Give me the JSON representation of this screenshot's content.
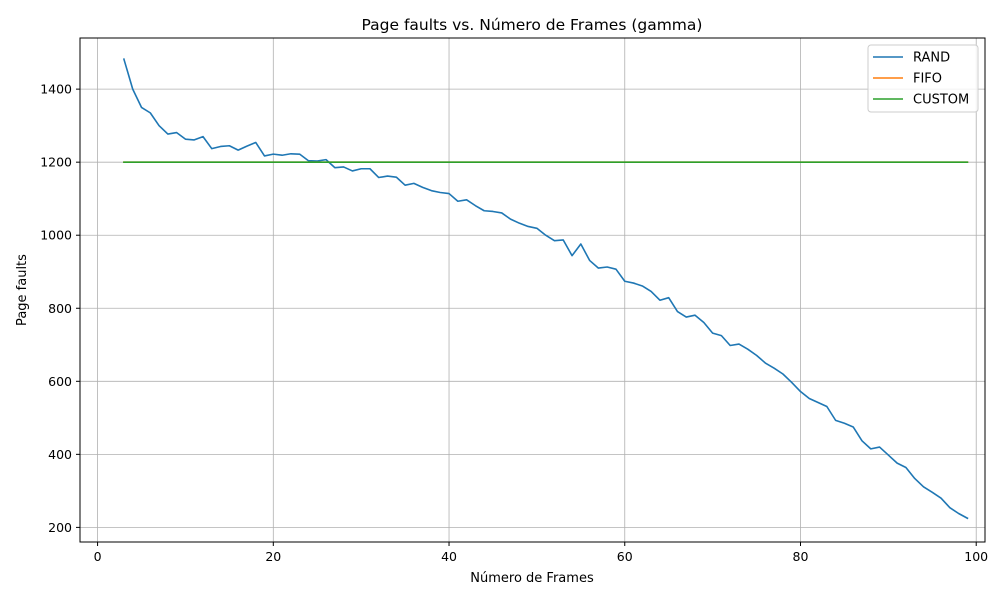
{
  "chart_data": {
    "type": "line",
    "title": "Page faults vs. Número de Frames (gamma)",
    "xlabel": "Número de Frames",
    "ylabel": "Page faults",
    "xlim": [
      -2,
      101
    ],
    "ylim": [
      160,
      1540
    ],
    "xticks": [
      "0",
      "20",
      "40",
      "60",
      "80",
      "100"
    ],
    "yticks": [
      "200",
      "400",
      "600",
      "800",
      "1000",
      "1200",
      "1400"
    ],
    "grid": true,
    "legend_position": "top-right",
    "x": [
      3,
      4,
      5,
      6,
      7,
      8,
      9,
      10,
      11,
      12,
      13,
      14,
      15,
      16,
      17,
      18,
      19,
      20,
      21,
      22,
      23,
      24,
      25,
      26,
      27,
      28,
      29,
      30,
      31,
      32,
      33,
      34,
      35,
      36,
      37,
      38,
      39,
      40,
      41,
      42,
      43,
      44,
      45,
      46,
      47,
      48,
      49,
      50,
      51,
      52,
      53,
      54,
      55,
      56,
      57,
      58,
      59,
      60,
      61,
      62,
      63,
      64,
      65,
      66,
      67,
      68,
      69,
      70,
      71,
      72,
      73,
      74,
      75,
      76,
      77,
      78,
      79,
      80,
      81,
      82,
      83,
      84,
      85,
      86,
      87,
      88,
      89,
      90,
      91,
      92,
      93,
      94,
      95,
      96,
      97,
      98,
      99
    ],
    "series": [
      {
        "name": "RAND",
        "color": "#1f77b4",
        "values": [
          1482,
          1400,
          1350,
          1335,
          1300,
          1277,
          1281,
          1263,
          1261,
          1270,
          1237,
          1243,
          1245,
          1233,
          1244,
          1254,
          1217,
          1222,
          1219,
          1223,
          1222,
          1204,
          1203,
          1207,
          1185,
          1187,
          1176,
          1182,
          1182,
          1158,
          1162,
          1159,
          1137,
          1142,
          1131,
          1122,
          1117,
          1114,
          1093,
          1097,
          1081,
          1067,
          1065,
          1061,
          1044,
          1033,
          1024,
          1019,
          1000,
          985,
          987,
          944,
          976,
          931,
          910,
          913,
          907,
          874,
          869,
          861,
          846,
          822,
          829,
          791,
          776,
          781,
          761,
          732,
          725,
          698,
          702,
          688,
          671,
          650,
          636,
          620,
          597,
          572,
          553,
          542,
          531,
          493,
          485,
          475,
          437,
          415,
          420,
          398,
          376,
          364,
          334,
          311,
          296,
          280,
          254,
          238,
          225
        ]
      },
      {
        "name": "FIFO",
        "color": "#ff7f0e",
        "values": [
          1200,
          1200,
          1200,
          1200,
          1200,
          1200,
          1200,
          1200,
          1200,
          1200,
          1200,
          1200,
          1200,
          1200,
          1200,
          1200,
          1200,
          1200,
          1200,
          1200,
          1200,
          1200,
          1200,
          1200,
          1200,
          1200,
          1200,
          1200,
          1200,
          1200,
          1200,
          1200,
          1200,
          1200,
          1200,
          1200,
          1200,
          1200,
          1200,
          1200,
          1200,
          1200,
          1200,
          1200,
          1200,
          1200,
          1200,
          1200,
          1200,
          1200,
          1200,
          1200,
          1200,
          1200,
          1200,
          1200,
          1200,
          1200,
          1200,
          1200,
          1200,
          1200,
          1200,
          1200,
          1200,
          1200,
          1200,
          1200,
          1200,
          1200,
          1200,
          1200,
          1200,
          1200,
          1200,
          1200,
          1200,
          1200,
          1200,
          1200,
          1200,
          1200,
          1200,
          1200,
          1200,
          1200,
          1200,
          1200,
          1200,
          1200,
          1200,
          1200,
          1200,
          1200,
          1200,
          1200,
          1200
        ]
      },
      {
        "name": "CUSTOM",
        "color": "#2ca02c",
        "values": [
          1200,
          1200,
          1200,
          1200,
          1200,
          1200,
          1200,
          1200,
          1200,
          1200,
          1200,
          1200,
          1200,
          1200,
          1200,
          1200,
          1200,
          1200,
          1200,
          1200,
          1200,
          1200,
          1200,
          1200,
          1200,
          1200,
          1200,
          1200,
          1200,
          1200,
          1200,
          1200,
          1200,
          1200,
          1200,
          1200,
          1200,
          1200,
          1200,
          1200,
          1200,
          1200,
          1200,
          1200,
          1200,
          1200,
          1200,
          1200,
          1200,
          1200,
          1200,
          1200,
          1200,
          1200,
          1200,
          1200,
          1200,
          1200,
          1200,
          1200,
          1200,
          1200,
          1200,
          1200,
          1200,
          1200,
          1200,
          1200,
          1200,
          1200,
          1200,
          1200,
          1200,
          1200,
          1200,
          1200,
          1200,
          1200,
          1200,
          1200,
          1200,
          1200,
          1200,
          1200,
          1200,
          1200,
          1200,
          1200,
          1200,
          1200,
          1200,
          1200,
          1200,
          1200,
          1200,
          1200,
          1200
        ]
      }
    ]
  }
}
